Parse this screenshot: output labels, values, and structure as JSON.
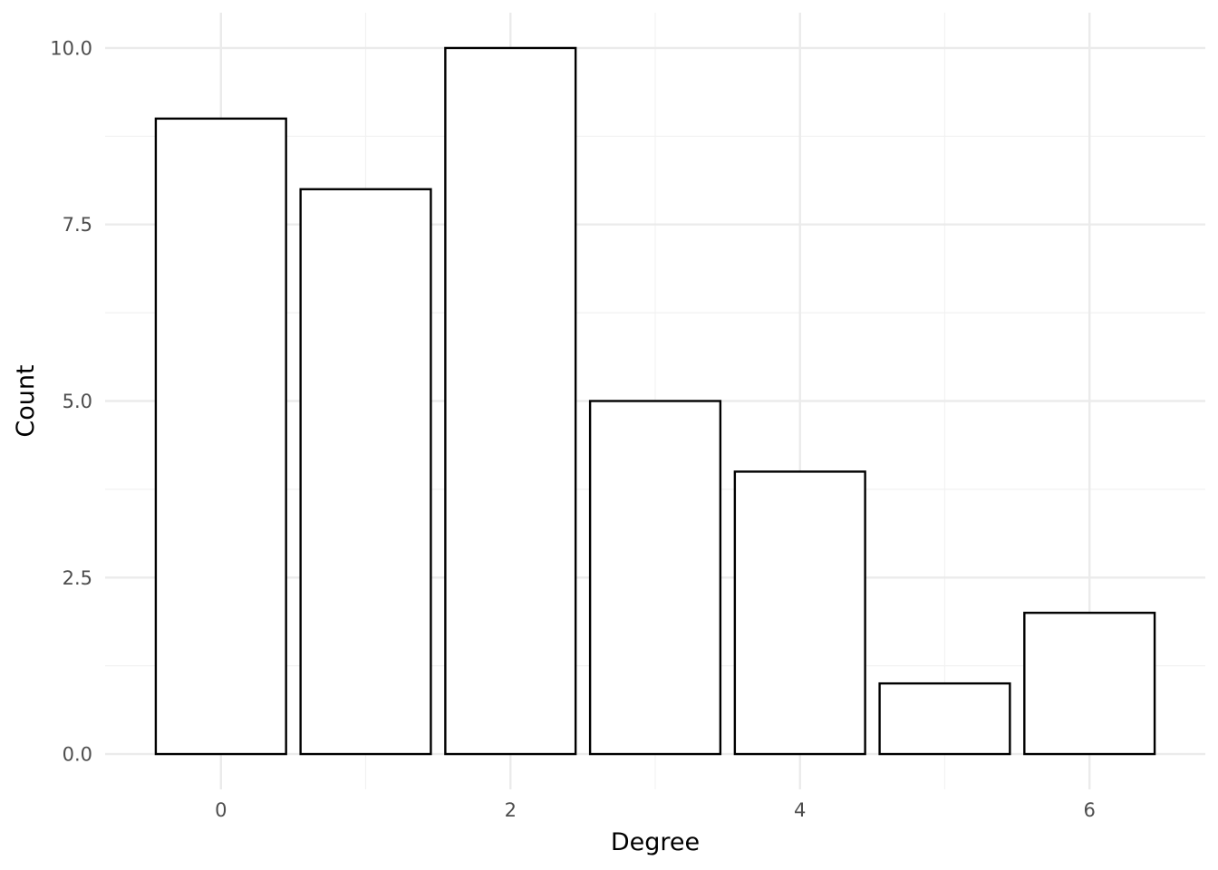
{
  "chart_data": {
    "type": "bar",
    "x": [
      0,
      1,
      2,
      3,
      4,
      5,
      6
    ],
    "values": [
      9,
      8,
      10,
      5,
      4,
      1,
      2
    ],
    "xlabel": "Degree",
    "ylabel": "Count",
    "x_ticks": [
      "0",
      "2",
      "4",
      "6"
    ],
    "x_tick_values": [
      0,
      2,
      4,
      6
    ],
    "y_ticks": [
      "0.0",
      "2.5",
      "5.0",
      "7.5",
      "10.0"
    ],
    "y_tick_values": [
      0,
      2.5,
      5,
      7.5,
      10
    ],
    "xlim": [
      -0.8,
      6.8
    ],
    "ylim": [
      -0.5,
      10.5
    ],
    "grid": true,
    "legend": "none",
    "colors": {
      "bar_fill": "#ffffff",
      "bar_outline": "#000000",
      "grid_major": "#ebebeb",
      "grid_minor": "#f2f2f2",
      "tick_text": "#4d4d4d",
      "axis_title": "#000000"
    }
  }
}
